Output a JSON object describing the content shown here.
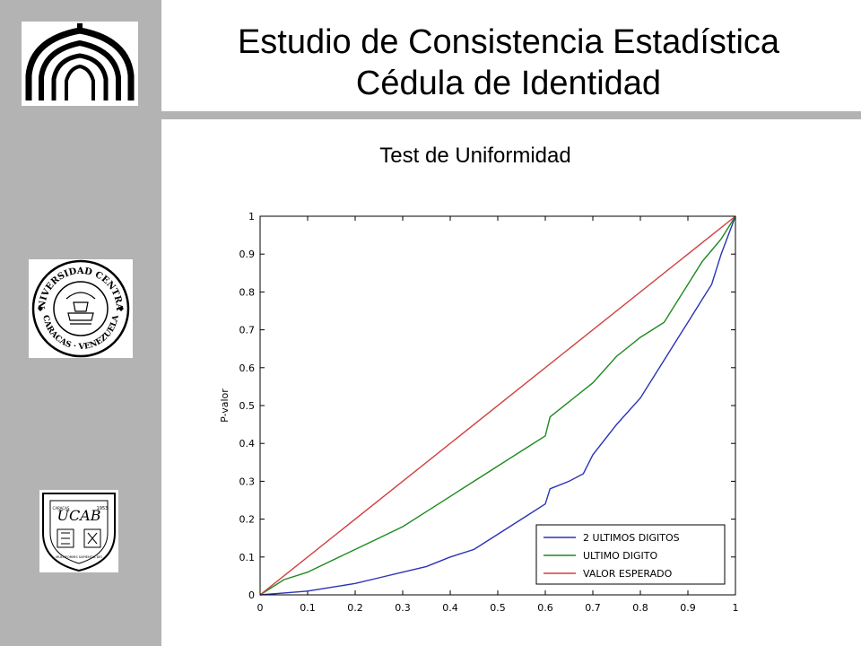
{
  "title": {
    "line1": "Estudio de Consistencia Estadística",
    "line2": "Cédula de Identidad"
  },
  "subtitle": "Test de Uniformidad",
  "logos": {
    "top": {
      "icon": "university-building-emblem-icon"
    },
    "middle": {
      "icon": "universidad-central-seal-icon",
      "top_text": "UNIVERSIDAD CENTRAL",
      "bottom_text": "CARACAS · VENEZUELA"
    },
    "bottom": {
      "icon": "ucab-shield-icon",
      "letters": "UCAB",
      "year": "1953",
      "city": "CARACAS",
      "motto": "MULTIFORMIS SAPIENTIA DEI"
    }
  },
  "colors": {
    "sidebar": "#b3b3b3",
    "series_blue": "#2a33b5",
    "series_green": "#1f8a1f",
    "series_red": "#d24040"
  },
  "chart_data": {
    "type": "line",
    "title": "",
    "xlabel": "",
    "ylabel": "P-valor",
    "xlim": [
      0,
      1
    ],
    "ylim": [
      0,
      1
    ],
    "grid": false,
    "legend_position": "bottom-right",
    "xticks": [
      "0",
      "0.1",
      "0.2",
      "0.3",
      "0.4",
      "0.5",
      "0.6",
      "0.7",
      "0.8",
      "0.9",
      "1"
    ],
    "yticks": [
      "0",
      "0.1",
      "0.2",
      "0.3",
      "0.4",
      "0.5",
      "0.6",
      "0.7",
      "0.8",
      "0.9",
      "1"
    ],
    "series": [
      {
        "name": "2 ULTIMOS DIGITOS",
        "color": "#2a33b5",
        "x": [
          0,
          0.05,
          0.1,
          0.15,
          0.2,
          0.25,
          0.3,
          0.35,
          0.4,
          0.45,
          0.5,
          0.55,
          0.6,
          0.61,
          0.65,
          0.68,
          0.7,
          0.75,
          0.8,
          0.85,
          0.88,
          0.9,
          0.93,
          0.95,
          0.97,
          1
        ],
        "y": [
          0,
          0.005,
          0.01,
          0.02,
          0.03,
          0.045,
          0.06,
          0.075,
          0.1,
          0.12,
          0.16,
          0.2,
          0.24,
          0.28,
          0.3,
          0.32,
          0.37,
          0.45,
          0.52,
          0.62,
          0.68,
          0.72,
          0.78,
          0.82,
          0.9,
          1
        ]
      },
      {
        "name": "ULTIMO DIGITO",
        "color": "#1f8a1f",
        "x": [
          0,
          0.05,
          0.1,
          0.15,
          0.2,
          0.25,
          0.3,
          0.35,
          0.4,
          0.45,
          0.5,
          0.55,
          0.6,
          0.61,
          0.65,
          0.7,
          0.75,
          0.8,
          0.85,
          0.87,
          0.9,
          0.93,
          0.95,
          0.97,
          1
        ],
        "y": [
          0,
          0.04,
          0.06,
          0.09,
          0.12,
          0.15,
          0.18,
          0.22,
          0.26,
          0.3,
          0.34,
          0.38,
          0.42,
          0.47,
          0.51,
          0.56,
          0.63,
          0.68,
          0.72,
          0.76,
          0.82,
          0.88,
          0.91,
          0.94,
          1
        ]
      },
      {
        "name": "VALOR ESPERADO",
        "color": "#d24040",
        "x": [
          0,
          1
        ],
        "y": [
          0,
          1
        ]
      }
    ]
  }
}
